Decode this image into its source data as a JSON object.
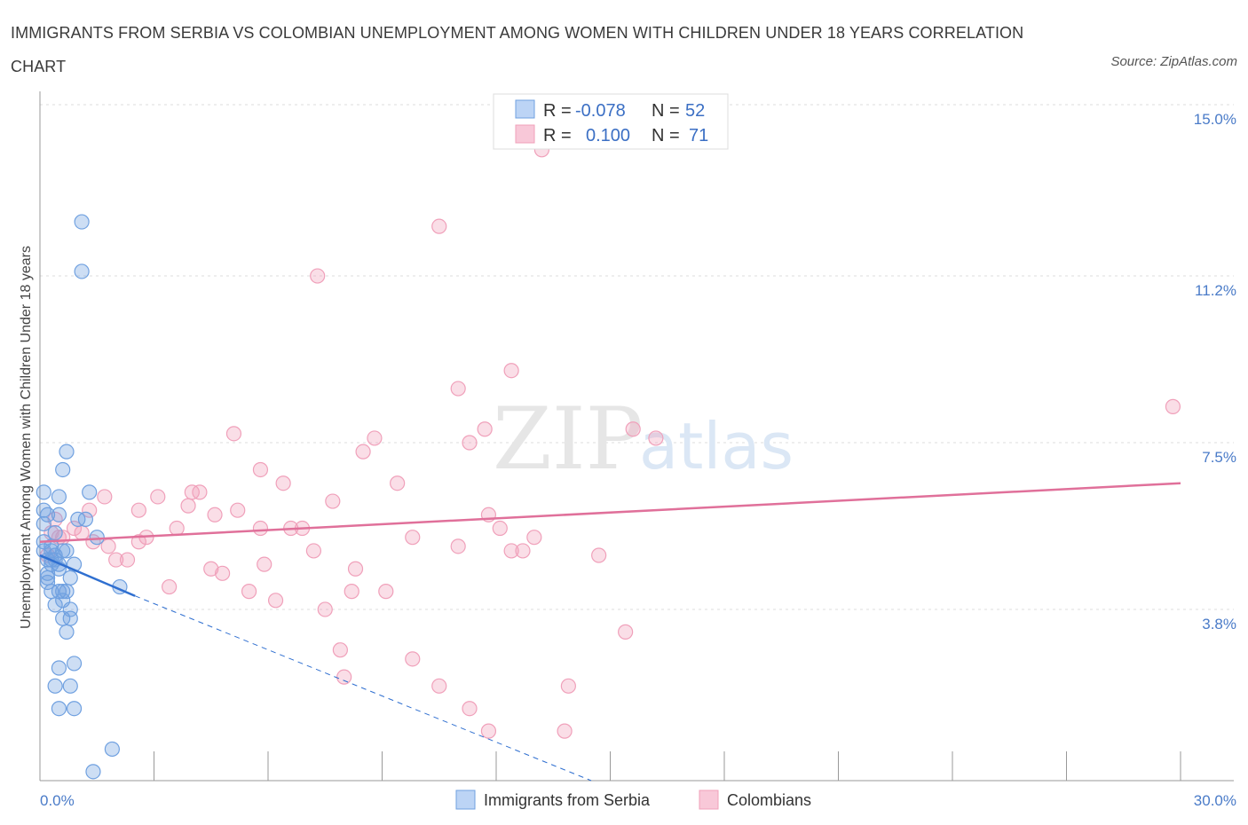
{
  "title": "IMMIGRANTS FROM SERBIA VS COLOMBIAN UNEMPLOYMENT AMONG WOMEN WITH CHILDREN UNDER 18 YEARS CORRELATION CHART",
  "source": "Source: ZipAtlas.com",
  "watermark": {
    "zip": "ZIP",
    "atlas": "atlas"
  },
  "colors": {
    "serbia": "#6fa0e0",
    "serbia_line": "#2f6fd0",
    "colombia": "#f0a0ba",
    "colombia_line": "#e0709a",
    "tick": "#4a7bc8"
  },
  "chart_data": {
    "type": "scatter",
    "xlabel": "",
    "ylabel": "Unemployment Among Women with Children Under 18 years",
    "xlim": [
      0,
      30
    ],
    "ylim": [
      0,
      15.0
    ],
    "x_tick_labels": [
      "0.0%",
      "30.0%"
    ],
    "y_ticks": [
      3.8,
      7.5,
      11.2,
      15.0
    ],
    "y_tick_labels": [
      "3.8%",
      "7.5%",
      "11.2%",
      "15.0%"
    ],
    "grid": true,
    "legend": [
      {
        "name": "Immigrants from Serbia",
        "r_label": "R =",
        "r": "-0.078",
        "n_label": "N =",
        "n": "52"
      },
      {
        "name": "Colombians",
        "r_label": "R =",
        "r": "0.100",
        "n_label": "N =",
        "n": "71"
      }
    ],
    "series": [
      {
        "name": "Immigrants from Serbia",
        "trend": {
          "x": [
            0.0,
            2.5
          ],
          "y": [
            5.0,
            4.1
          ],
          "dashed_to": [
            14.5,
            0.0
          ]
        },
        "points": [
          [
            1.1,
            12.4
          ],
          [
            1.1,
            11.3
          ],
          [
            0.7,
            7.3
          ],
          [
            0.6,
            6.9
          ],
          [
            0.1,
            6.4
          ],
          [
            0.5,
            6.3
          ],
          [
            1.3,
            6.4
          ],
          [
            0.1,
            6.0
          ],
          [
            0.5,
            5.9
          ],
          [
            1.2,
            5.8
          ],
          [
            1.0,
            5.8
          ],
          [
            0.1,
            5.7
          ],
          [
            0.4,
            5.5
          ],
          [
            1.5,
            5.4
          ],
          [
            0.1,
            5.1
          ],
          [
            0.3,
            5.1
          ],
          [
            0.6,
            5.1
          ],
          [
            0.7,
            5.1
          ],
          [
            0.2,
            4.9
          ],
          [
            0.3,
            4.9
          ],
          [
            0.4,
            4.9
          ],
          [
            0.5,
            4.8
          ],
          [
            0.3,
            4.8
          ],
          [
            0.2,
            4.6
          ],
          [
            0.5,
            4.7
          ],
          [
            0.8,
            4.5
          ],
          [
            0.2,
            4.4
          ],
          [
            0.3,
            4.2
          ],
          [
            0.5,
            4.2
          ],
          [
            0.6,
            4.2
          ],
          [
            0.7,
            4.2
          ],
          [
            2.1,
            4.3
          ],
          [
            0.8,
            3.8
          ],
          [
            0.6,
            3.6
          ],
          [
            0.8,
            3.6
          ],
          [
            0.7,
            3.3
          ],
          [
            0.9,
            2.6
          ],
          [
            0.5,
            2.5
          ],
          [
            0.4,
            2.1
          ],
          [
            0.8,
            2.1
          ],
          [
            0.5,
            1.6
          ],
          [
            0.9,
            1.6
          ],
          [
            1.9,
            0.7
          ],
          [
            1.4,
            0.2
          ],
          [
            0.1,
            5.3
          ],
          [
            0.2,
            4.5
          ],
          [
            0.4,
            5.0
          ],
          [
            0.3,
            5.2
          ],
          [
            0.6,
            4.0
          ],
          [
            0.2,
            5.9
          ],
          [
            0.9,
            4.8
          ],
          [
            0.4,
            3.9
          ]
        ]
      },
      {
        "name": "Colombians",
        "trend": {
          "x": [
            0.0,
            30.0
          ],
          "y": [
            5.3,
            6.6
          ]
        },
        "points": [
          [
            13.2,
            14.0
          ],
          [
            10.5,
            12.3
          ],
          [
            7.3,
            11.2
          ],
          [
            12.4,
            9.1
          ],
          [
            11.0,
            8.7
          ],
          [
            29.8,
            8.3
          ],
          [
            5.1,
            7.7
          ],
          [
            8.8,
            7.6
          ],
          [
            11.3,
            7.5
          ],
          [
            11.7,
            7.8
          ],
          [
            15.6,
            7.8
          ],
          [
            16.2,
            7.6
          ],
          [
            8.5,
            7.3
          ],
          [
            5.8,
            6.9
          ],
          [
            6.4,
            6.6
          ],
          [
            9.4,
            6.6
          ],
          [
            3.1,
            6.3
          ],
          [
            4.0,
            6.4
          ],
          [
            1.7,
            6.3
          ],
          [
            4.2,
            6.4
          ],
          [
            3.9,
            6.1
          ],
          [
            7.7,
            6.2
          ],
          [
            5.2,
            6.0
          ],
          [
            4.6,
            5.9
          ],
          [
            2.6,
            6.0
          ],
          [
            11.8,
            5.9
          ],
          [
            1.3,
            6.0
          ],
          [
            12.1,
            5.6
          ],
          [
            3.6,
            5.6
          ],
          [
            5.8,
            5.6
          ],
          [
            6.6,
            5.6
          ],
          [
            6.9,
            5.6
          ],
          [
            0.3,
            5.5
          ],
          [
            0.9,
            5.6
          ],
          [
            2.8,
            5.4
          ],
          [
            9.8,
            5.4
          ],
          [
            13.0,
            5.4
          ],
          [
            0.6,
            5.4
          ],
          [
            1.4,
            5.3
          ],
          [
            1.8,
            5.2
          ],
          [
            0.5,
            5.4
          ],
          [
            11.0,
            5.2
          ],
          [
            12.7,
            5.1
          ],
          [
            12.4,
            5.1
          ],
          [
            14.7,
            5.0
          ],
          [
            7.2,
            5.1
          ],
          [
            2.0,
            4.9
          ],
          [
            2.3,
            4.9
          ],
          [
            5.9,
            4.8
          ],
          [
            8.3,
            4.7
          ],
          [
            4.5,
            4.7
          ],
          [
            4.8,
            4.6
          ],
          [
            3.4,
            4.3
          ],
          [
            8.2,
            4.2
          ],
          [
            9.1,
            4.2
          ],
          [
            5.5,
            4.2
          ],
          [
            6.2,
            4.0
          ],
          [
            7.5,
            3.8
          ],
          [
            15.4,
            3.3
          ],
          [
            7.9,
            2.9
          ],
          [
            9.8,
            2.7
          ],
          [
            8.0,
            2.3
          ],
          [
            10.5,
            2.1
          ],
          [
            13.9,
            2.1
          ],
          [
            11.3,
            1.6
          ],
          [
            11.8,
            1.1
          ],
          [
            13.8,
            1.1
          ],
          [
            0.4,
            5.8
          ],
          [
            1.1,
            5.5
          ],
          [
            0.2,
            5.0
          ],
          [
            2.6,
            5.3
          ]
        ]
      }
    ]
  }
}
